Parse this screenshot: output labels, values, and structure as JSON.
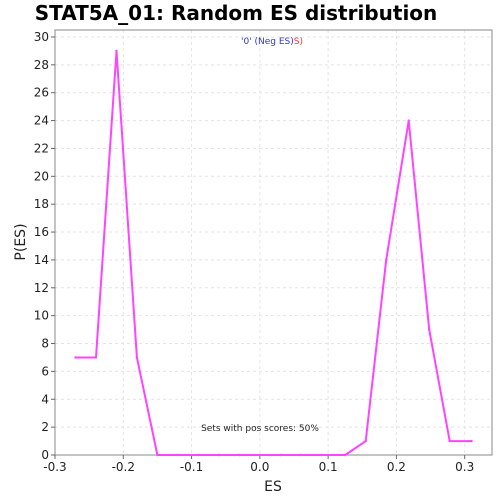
{
  "chart_data": {
    "type": "line",
    "title": "STAT5A_01: Random ES distribution",
    "xlabel": "ES",
    "ylabel": "P(ES)",
    "xlim": [
      -0.3,
      0.34
    ],
    "ylim": [
      0,
      30.5
    ],
    "xticks": [
      -0.3,
      -0.2,
      -0.1,
      0.0,
      0.1,
      0.2,
      0.3
    ],
    "xtick_labels": [
      "-0.3",
      "-0.2",
      "-0.1",
      "0.0",
      "0.1",
      "0.2",
      "0.3"
    ],
    "yticks": [
      0,
      2,
      4,
      6,
      8,
      10,
      12,
      14,
      16,
      18,
      20,
      22,
      24,
      26,
      28,
      30
    ],
    "ytick_labels": [
      "0",
      "2",
      "4",
      "6",
      "8",
      "10",
      "12",
      "14",
      "16",
      "18",
      "20",
      "22",
      "24",
      "26",
      "28",
      "30"
    ],
    "grid": true,
    "color": "#ff44ff",
    "series": [
      {
        "x": [
          -0.27,
          -0.24,
          -0.21,
          -0.18,
          -0.15,
          -0.12,
          -0.09,
          -0.06,
          -0.03,
          0.0,
          0.03,
          0.06,
          0.09,
          0.125,
          0.155,
          0.185,
          0.218,
          0.248,
          0.278,
          0.31
        ],
        "y": [
          7,
          7,
          29,
          7,
          0,
          0,
          0,
          0,
          0,
          0,
          0,
          0,
          0,
          0,
          1,
          14,
          24,
          9,
          1,
          1
        ]
      }
    ],
    "annotations": {
      "legend_prefix": "'0' (Neg ES)",
      "legend_suffix": "S)",
      "legend_prefix_color": "#3333cc",
      "legend_suffix_color": "#ff3333",
      "pos_scores": "Sets with pos scores: 50%"
    }
  }
}
